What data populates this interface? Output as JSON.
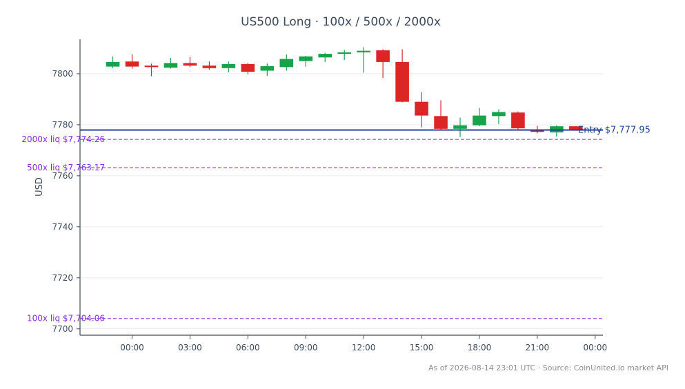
{
  "chart_data": {
    "type": "candlestick",
    "title": "US500 Long · 100x / 500x / 2000x",
    "ylabel": "USD",
    "xlabel": "",
    "ylim": [
      7697.5,
      7813.5
    ],
    "yticks": [
      7700,
      7720,
      7740,
      7760,
      7780,
      7800
    ],
    "xlim": [
      -1.7,
      25.4
    ],
    "xticks": [
      {
        "x": 1,
        "label": "00:00"
      },
      {
        "x": 4,
        "label": "03:00"
      },
      {
        "x": 7,
        "label": "06:00"
      },
      {
        "x": 10,
        "label": "09:00"
      },
      {
        "x": 13,
        "label": "12:00"
      },
      {
        "x": 16,
        "label": "15:00"
      },
      {
        "x": 19,
        "label": "18:00"
      },
      {
        "x": 22,
        "label": "21:00"
      },
      {
        "x": 25,
        "label": "00:00"
      }
    ],
    "candles": [
      {
        "o": 7802.8,
        "h": 7806.8,
        "l": 7802.2,
        "c": 7804.6
      },
      {
        "o": 7804.8,
        "h": 7807.6,
        "l": 7802.0,
        "c": 7802.8
      },
      {
        "o": 7803.2,
        "h": 7804.0,
        "l": 7799.0,
        "c": 7802.6
      },
      {
        "o": 7802.4,
        "h": 7806.2,
        "l": 7802.0,
        "c": 7804.2
      },
      {
        "o": 7804.2,
        "h": 7806.6,
        "l": 7802.6,
        "c": 7803.2
      },
      {
        "o": 7803.2,
        "h": 7804.8,
        "l": 7801.6,
        "c": 7802.2
      },
      {
        "o": 7802.2,
        "h": 7804.8,
        "l": 7800.6,
        "c": 7803.8
      },
      {
        "o": 7803.8,
        "h": 7804.2,
        "l": 7799.8,
        "c": 7800.8
      },
      {
        "o": 7801.2,
        "h": 7804.0,
        "l": 7799.2,
        "c": 7803.0
      },
      {
        "o": 7802.6,
        "h": 7807.6,
        "l": 7801.2,
        "c": 7805.8
      },
      {
        "o": 7805.0,
        "h": 7807.0,
        "l": 7802.8,
        "c": 7806.8
      },
      {
        "o": 7806.4,
        "h": 7808.2,
        "l": 7804.6,
        "c": 7807.8
      },
      {
        "o": 7807.8,
        "h": 7809.4,
        "l": 7805.4,
        "c": 7808.4
      },
      {
        "o": 7808.4,
        "h": 7810.4,
        "l": 7800.4,
        "c": 7809.0
      },
      {
        "o": 7809.2,
        "h": 7809.6,
        "l": 7798.4,
        "c": 7804.6
      },
      {
        "o": 7804.6,
        "h": 7809.6,
        "l": 7788.8,
        "c": 7789.0
      },
      {
        "o": 7789.0,
        "h": 7792.8,
        "l": 7779.0,
        "c": 7783.6
      },
      {
        "o": 7783.4,
        "h": 7789.6,
        "l": 7777.8,
        "c": 7778.4
      },
      {
        "o": 7778.4,
        "h": 7782.8,
        "l": 7775.2,
        "c": 7779.8
      },
      {
        "o": 7779.8,
        "h": 7786.6,
        "l": 7779.4,
        "c": 7783.6
      },
      {
        "o": 7783.4,
        "h": 7786.0,
        "l": 7780.2,
        "c": 7785.0
      },
      {
        "o": 7784.8,
        "h": 7785.2,
        "l": 7778.0,
        "c": 7778.6
      },
      {
        "o": 7778.0,
        "h": 7779.6,
        "l": 7776.6,
        "c": 7777.2
      },
      {
        "o": 7777.0,
        "h": 7779.8,
        "l": 7775.4,
        "c": 7779.4
      },
      {
        "o": 7779.4,
        "h": 7779.4,
        "l": 7778.0,
        "c": 7778.2
      }
    ],
    "entry": {
      "value": 7777.95,
      "label": "Entry $7,777.95",
      "color": "#1f3f99"
    },
    "liquidations": [
      {
        "value": 7774.26,
        "label": "2000x liq $7,774.26"
      },
      {
        "value": 7763.17,
        "label": "500x liq $7,763.17"
      },
      {
        "value": 7704.06,
        "label": "100x liq $7,704.06"
      }
    ],
    "liq_color": "#8a2be2",
    "up_color": "#17a34a",
    "down_color": "#dc2626",
    "grid": "horizontal",
    "footer": "As of 2026-08-14 23:01 UTC · Source: CoinUnited.io market API"
  }
}
